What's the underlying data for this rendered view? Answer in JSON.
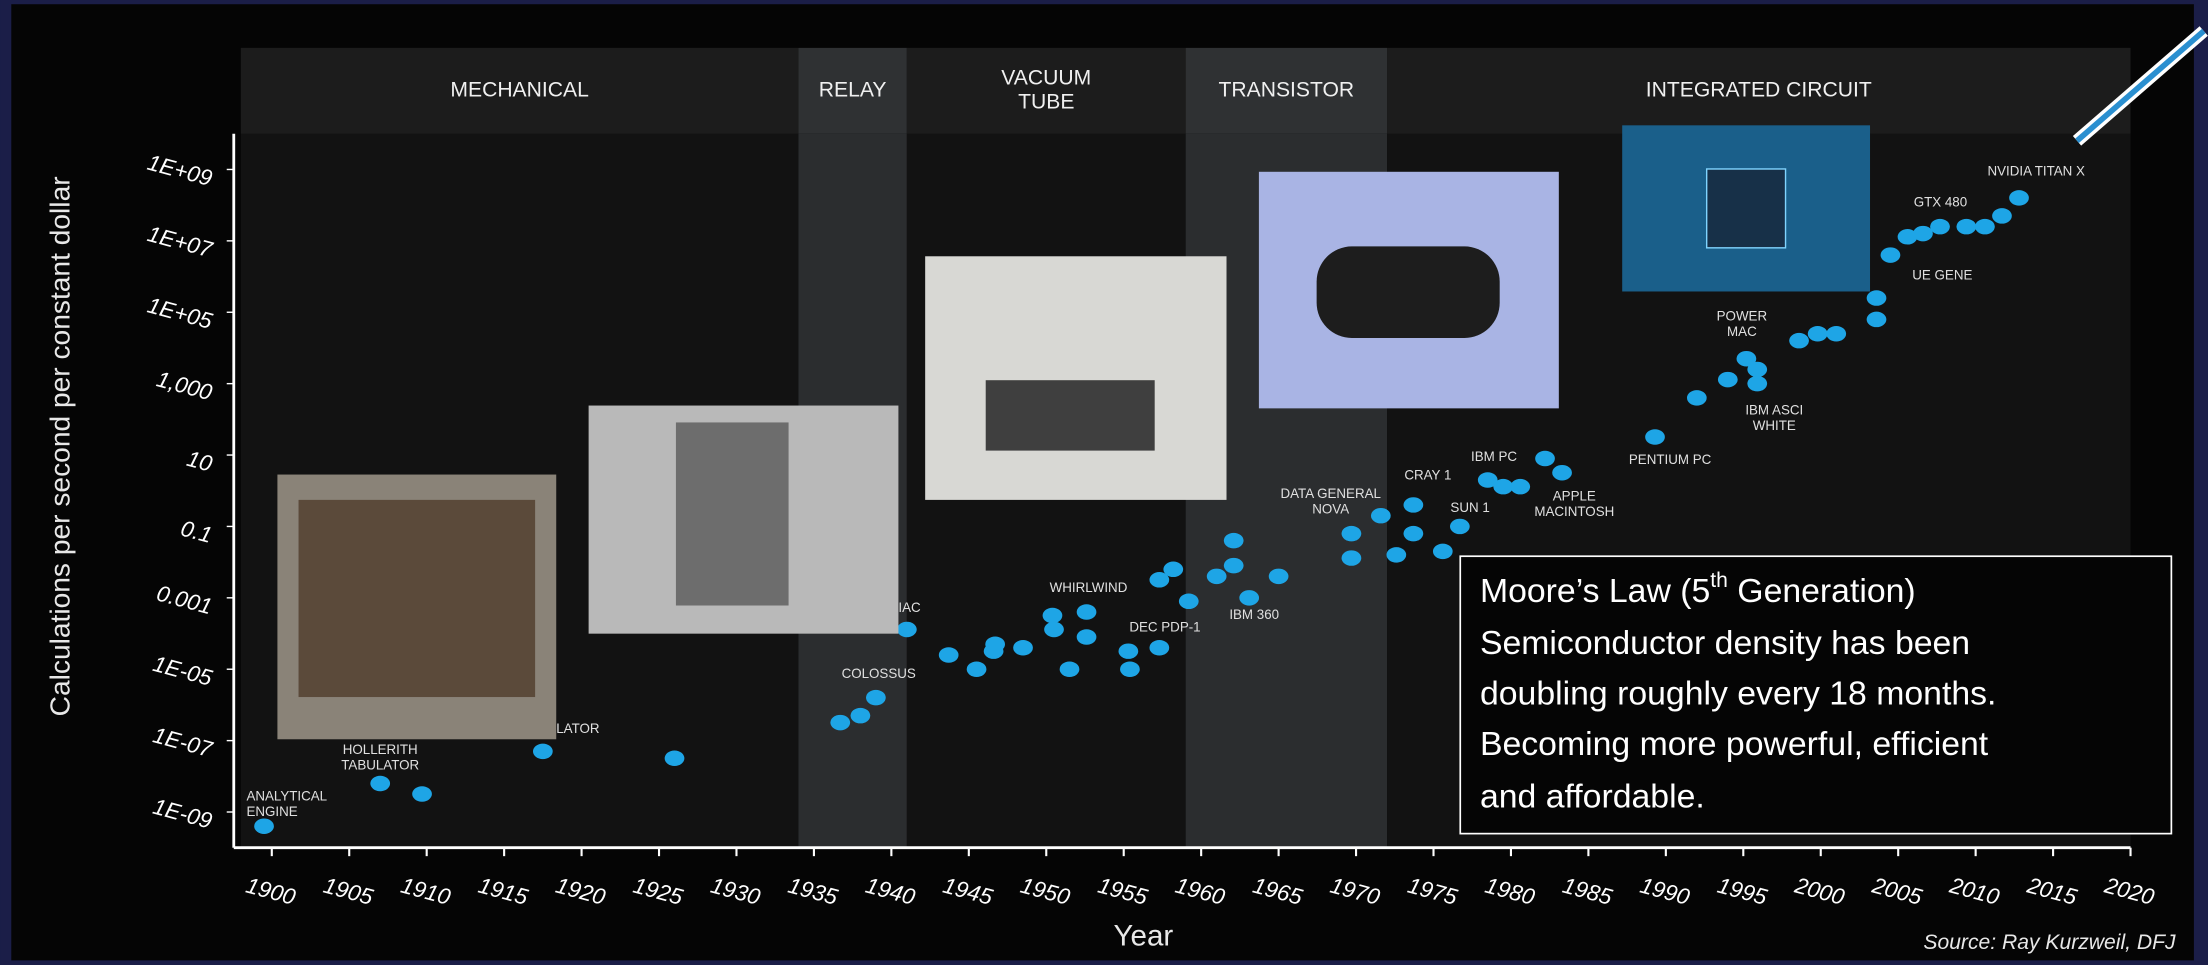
{
  "chart_data": {
    "type": "scatter",
    "x_label": "Year",
    "y_label": "Calculations per second per constant dollar",
    "source": "Source: Ray Kurzweil, DFJ",
    "yscale": "log",
    "color": "#1ea5e6",
    "xlim": [
      1899,
      2021
    ],
    "xticks": [
      1900,
      1905,
      1910,
      1915,
      1920,
      1925,
      1930,
      1935,
      1940,
      1945,
      1950,
      1955,
      1960,
      1965,
      1970,
      1975,
      1980,
      1985,
      1990,
      1995,
      2000,
      2005,
      2010,
      2015,
      2020
    ],
    "ylim": [
      1e-10,
      10000000000.0
    ],
    "yticks": [
      {
        "value": 1000000000.0,
        "label": "1E+09"
      },
      {
        "value": 10000000.0,
        "label": "1E+07"
      },
      {
        "value": 100000.0,
        "label": "1E+05"
      },
      {
        "value": 1000,
        "label": "1,000"
      },
      10,
      0.1,
      0.001,
      {
        "value": 1e-05,
        "label": "1E-05"
      },
      {
        "value": 1e-07,
        "label": "1E-07"
      },
      {
        "value": 1e-09,
        "label": "1E-09"
      }
    ],
    "eras": [
      {
        "name": [
          "MECHANICAL"
        ],
        "start": 1899,
        "end": 1935
      },
      {
        "name": [
          "RELAY"
        ],
        "start": 1935,
        "end": 1942
      },
      {
        "name": [
          "VACUUM",
          "TUBE"
        ],
        "start": 1942,
        "end": 1960
      },
      {
        "name": [
          "TRANSISTOR"
        ],
        "start": 1960,
        "end": 1973
      },
      {
        "name": [
          "INTEGRATED CIRCUIT"
        ],
        "start": 1973,
        "end": 2021
      }
    ],
    "x": [
      1900.5,
      1908,
      1910.7,
      1918.5,
      1927,
      1937.7,
      1939,
      1940,
      1942,
      1944.7,
      1946.5,
      1947.6,
      1947.7,
      1949.5,
      1951.4,
      1951.5,
      1952.5,
      1953.6,
      1953.6,
      1956.3,
      1956.4,
      1958.3,
      1958.3,
      1959.2,
      1960.2,
      1962,
      1963.1,
      1963.1,
      1964.1,
      1966,
      1970.7,
      1970.7,
      1972.6,
      1973.6,
      1974.7,
      1974.7,
      1976.6,
      1977.7,
      1979.5,
      1980.5,
      1981.6,
      1983.2,
      1984.3,
      1990.3,
      1993,
      1995,
      1996.2,
      1996.9,
      1996.9,
      1999.6,
      2000.8,
      2002,
      2004.6,
      2004.6,
      2005.5,
      2006.6,
      2007.6,
      2008.7,
      2010.4,
      2011.6,
      2012.7,
      2013.8
    ],
    "values": [
      4e-10,
      6.3e-09,
      3.2e-09,
      5e-08,
      3.2e-08,
      3.2e-07,
      5e-07,
      1.6e-06,
      0.00013,
      2.5e-05,
      1e-05,
      3.2e-05,
      5e-05,
      4e-05,
      0.00032,
      0.00013,
      1e-05,
      0.0004,
      8e-05,
      3.2e-05,
      1e-05,
      4e-05,
      0.0032,
      0.0063,
      0.0008,
      0.004,
      0.04,
      0.008,
      0.001,
      0.004,
      0.063,
      0.013,
      0.2,
      0.016,
      0.4,
      0.063,
      0.02,
      0.1,
      2,
      1.3,
      1.3,
      8,
      3.2,
      32,
      400,
      1300,
      5000,
      2500,
      1000,
      16000,
      25000,
      25000,
      63000,
      250000,
      4000000,
      13000000,
      16000000,
      25000000,
      25000000,
      25000000,
      50000000,
      160000000
    ],
    "annotations": [
      [
        "ANALYTICAL",
        "ENGINE"
      ],
      [
        "HOLLERITH",
        "TABULATOR"
      ],
      [
        "LATOR"
      ],
      [
        "IAC"
      ],
      [
        "COLOSSUS"
      ],
      [
        "WHIRLWIND"
      ],
      [
        "DEC PDP-1"
      ],
      [
        "IBM 360"
      ],
      [
        "DATA GENERAL",
        "NOVA"
      ],
      [
        "CRAY 1"
      ],
      [
        "SUN 1"
      ],
      [
        "IBM PC"
      ],
      [
        "APPLE",
        "MACINTOSH"
      ],
      [
        "PENTIUM PC"
      ],
      [
        "POWER",
        "MAC"
      ],
      [
        "IBM ASCI",
        "WHITE"
      ],
      [
        "UE GENE"
      ],
      [
        "GTX 480"
      ],
      [
        "NVIDIA TITAN X"
      ]
    ]
  },
  "callout": {
    "title_before": "Moore’s Law (5",
    "title_sup": "th",
    "title_after": " Generation)",
    "body": [
      "Semiconductor density has been",
      "doubling roughly every 18 months.",
      "Becoming more powerful, efficient",
      "and affordable."
    ]
  }
}
